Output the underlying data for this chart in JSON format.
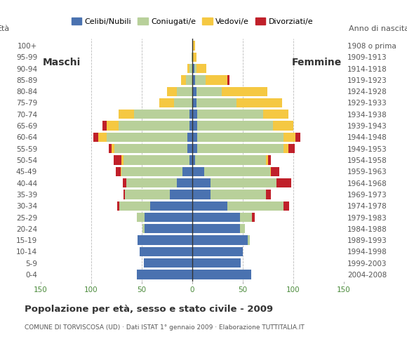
{
  "age_groups": [
    "0-4",
    "5-9",
    "10-14",
    "15-19",
    "20-24",
    "25-29",
    "30-34",
    "35-39",
    "40-44",
    "45-49",
    "50-54",
    "55-59",
    "60-64",
    "65-69",
    "70-74",
    "75-79",
    "80-84",
    "85-89",
    "90-94",
    "95-99",
    "100+"
  ],
  "birth_years": [
    "2004-2008",
    "1999-2003",
    "1994-1998",
    "1989-1993",
    "1984-1988",
    "1979-1983",
    "1974-1978",
    "1969-1973",
    "1964-1968",
    "1959-1963",
    "1954-1958",
    "1949-1953",
    "1944-1948",
    "1939-1943",
    "1934-1938",
    "1929-1933",
    "1924-1928",
    "1919-1923",
    "1914-1918",
    "1909-1913",
    "1908 o prima"
  ],
  "males": {
    "celibe": [
      55,
      48,
      52,
      54,
      47,
      47,
      42,
      22,
      15,
      10,
      3,
      5,
      5,
      3,
      3,
      0,
      0,
      0,
      0,
      0,
      0
    ],
    "coniugato": [
      0,
      0,
      0,
      0,
      2,
      8,
      30,
      45,
      50,
      60,
      65,
      72,
      80,
      70,
      55,
      18,
      15,
      6,
      3,
      1,
      0
    ],
    "vedovo": [
      0,
      0,
      0,
      0,
      0,
      0,
      0,
      0,
      0,
      1,
      2,
      3,
      8,
      12,
      15,
      15,
      10,
      5,
      2,
      0,
      0
    ],
    "divorziato": [
      0,
      0,
      0,
      0,
      0,
      0,
      2,
      1,
      4,
      5,
      8,
      3,
      5,
      4,
      0,
      0,
      0,
      0,
      0,
      0,
      0
    ]
  },
  "females": {
    "celibe": [
      58,
      48,
      50,
      55,
      47,
      47,
      35,
      18,
      18,
      12,
      3,
      5,
      5,
      5,
      5,
      4,
      4,
      3,
      2,
      1,
      1
    ],
    "coniugato": [
      0,
      0,
      0,
      2,
      5,
      12,
      55,
      55,
      65,
      65,
      70,
      85,
      85,
      75,
      65,
      40,
      25,
      10,
      2,
      0,
      0
    ],
    "vedovo": [
      0,
      0,
      0,
      0,
      0,
      0,
      0,
      0,
      0,
      1,
      2,
      5,
      12,
      20,
      25,
      45,
      45,
      22,
      10,
      3,
      2
    ],
    "divorziato": [
      0,
      0,
      0,
      0,
      0,
      3,
      6,
      5,
      15,
      8,
      3,
      6,
      5,
      0,
      0,
      0,
      0,
      2,
      0,
      0,
      0
    ]
  },
  "colors": {
    "celibe": "#4a72b0",
    "coniugato": "#b8d09a",
    "vedovo": "#f5c842",
    "divorziato": "#c0202a"
  },
  "xlim": 150,
  "title": "Popolazione per età, sesso e stato civile - 2009",
  "subtitle": "COMUNE DI TORVISCOSA (UD) · Dati ISTAT 1° gennaio 2009 · Elaborazione TUTTITALIA.IT",
  "legend_labels": [
    "Celibi/Nubili",
    "Coniugati/e",
    "Vedovi/e",
    "Divorziati/e"
  ],
  "label_eta": "Età",
  "label_anno": "Anno di nascita",
  "label_maschi": "Maschi",
  "label_femmine": "Femmine",
  "bg_color": "#ffffff",
  "grid_color": "#bbbbbb"
}
